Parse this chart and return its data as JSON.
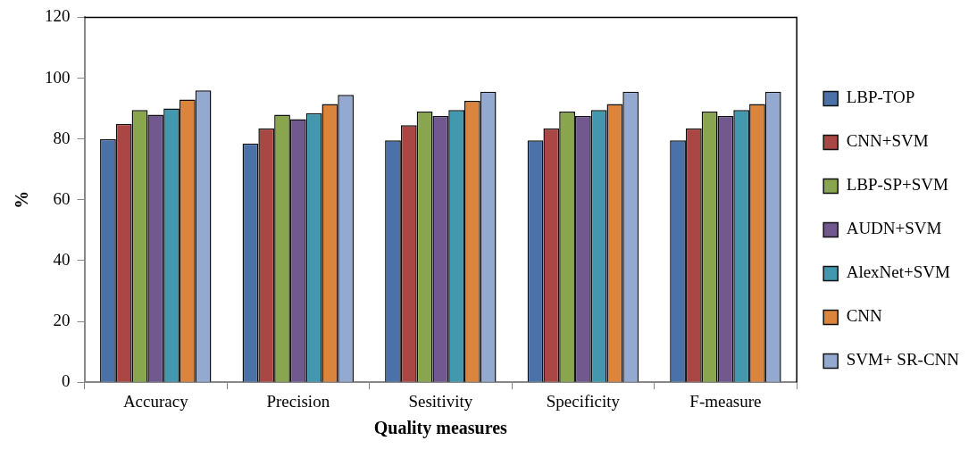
{
  "chart_data": {
    "type": "bar",
    "xlabel": "Quality measures",
    "ylabel": "%",
    "categories": [
      "Accuracy",
      "Precision",
      "Sesitivity",
      "Specificity",
      "F-measure"
    ],
    "ylim": [
      0,
      120
    ],
    "yticks": [
      0,
      20,
      40,
      60,
      80,
      100,
      120
    ],
    "grid": false,
    "legend": "right",
    "series": [
      {
        "name": "LBP-TOP",
        "color": "#4a72a8",
        "values": [
          80,
          78.5,
          79.5,
          79.5,
          79.5
        ]
      },
      {
        "name": "CNN+SVM",
        "color": "#aa4644",
        "values": [
          85,
          83.5,
          84.5,
          83.5,
          83.5
        ]
      },
      {
        "name": "LBP-SP+SVM",
        "color": "#89a54e",
        "values": [
          89.5,
          88,
          89,
          89,
          89
        ]
      },
      {
        "name": "AUDN+SVM",
        "color": "#71588f",
        "values": [
          88,
          86.5,
          87.5,
          87.5,
          87.5
        ]
      },
      {
        "name": "AlexNet+SVM",
        "color": "#4198af",
        "values": [
          90,
          88.5,
          89.5,
          89.5,
          89.5
        ]
      },
      {
        "name": "CNN",
        "color": "#db843d",
        "values": [
          93,
          91.5,
          92.5,
          91.5,
          91.5
        ]
      },
      {
        "name": "SVM+ SR-CNN",
        "color": "#93a9cf",
        "values": [
          96,
          94.5,
          95.5,
          95.5,
          95.5
        ]
      }
    ]
  }
}
